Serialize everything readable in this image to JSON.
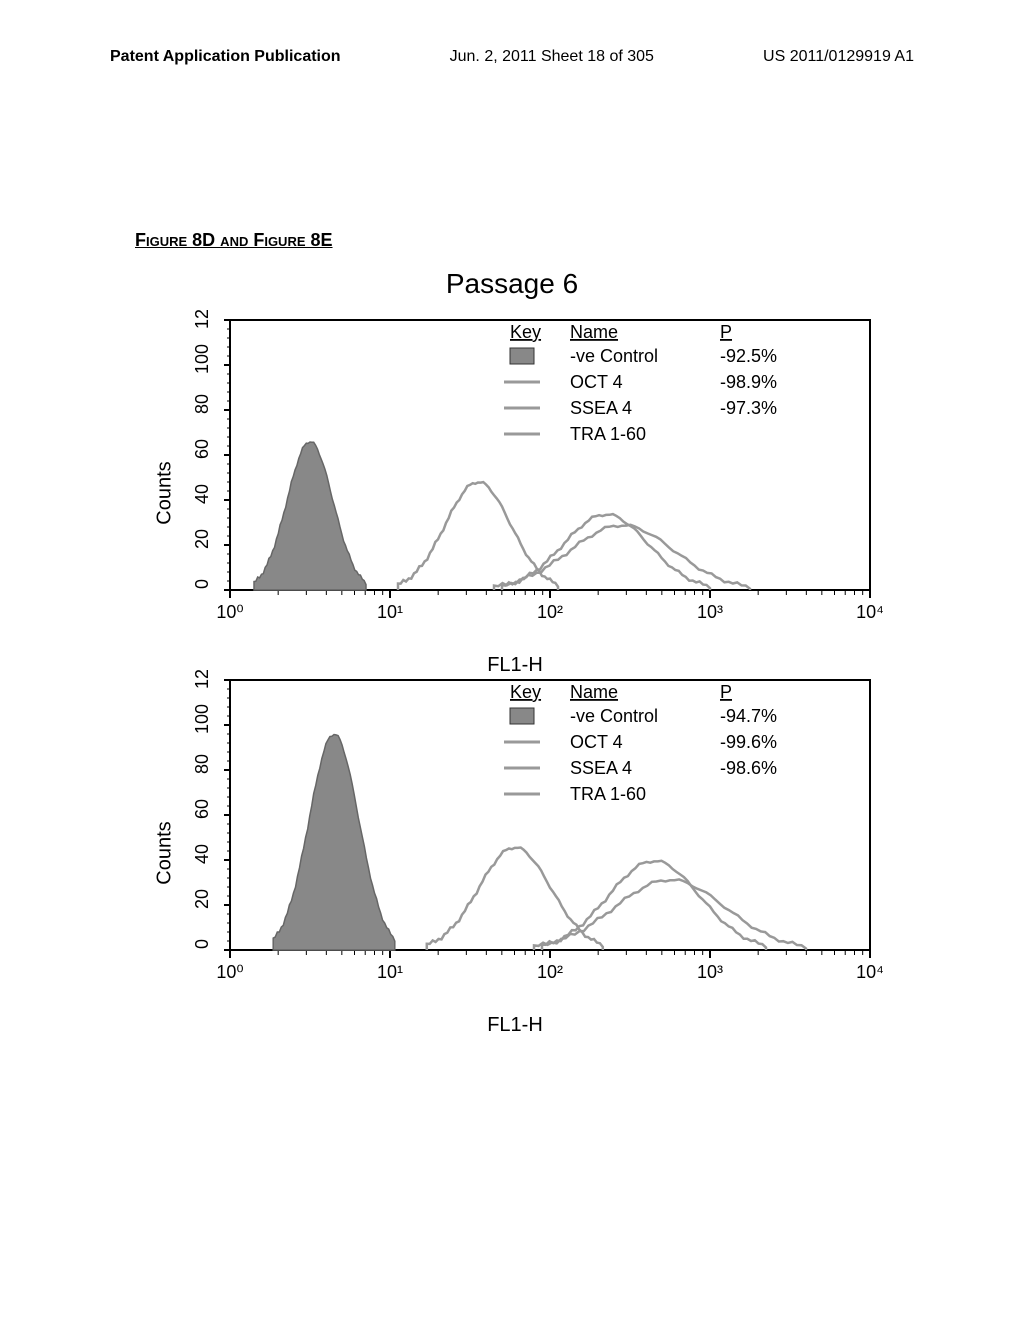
{
  "header": {
    "left": "Patent Application Publication",
    "center": "Jun. 2, 2011  Sheet 18 of 305",
    "right": "US 2011/0129919 A1"
  },
  "figure_label": "Figure 8D and Figure 8E",
  "chart_title": "Passage 6",
  "charts": [
    {
      "y_label": "Counts",
      "x_label": "FL1-H",
      "y_ticks": [
        0,
        20,
        40,
        60,
        80,
        100,
        120
      ],
      "x_ticks": [
        "10⁰",
        "10¹",
        "10²",
        "10³",
        "10⁴"
      ],
      "legend": {
        "headers": [
          "Key",
          "Name",
          "P"
        ],
        "rows": [
          {
            "swatch": "filled",
            "name": "-ve Control",
            "p": "-92.5%"
          },
          {
            "swatch": "line",
            "name": "OCT 4",
            "p": "-98.9%"
          },
          {
            "swatch": "line",
            "name": "SSEA 4",
            "p": "-97.3%"
          },
          {
            "swatch": "line",
            "name": "TRA 1-60",
            "p": ""
          }
        ]
      },
      "plot": {
        "bg": "#ffffff",
        "border": "#000000",
        "fill_color": "#888888",
        "line_color": "#999999",
        "series": {
          "control": {
            "center": 0.5,
            "width": 0.35,
            "height": 0.55
          },
          "oct4": {
            "center": 1.55,
            "width": 0.5,
            "height": 0.4
          },
          "ssea4": {
            "center": 2.35,
            "width": 0.65,
            "height": 0.28
          },
          "tra": {
            "center": 2.45,
            "width": 0.8,
            "height": 0.24
          }
        }
      }
    },
    {
      "y_label": "Counts",
      "x_label": "FL1-H",
      "y_ticks": [
        0,
        20,
        40,
        60,
        80,
        100,
        120
      ],
      "x_ticks": [
        "10⁰",
        "10¹",
        "10²",
        "10³",
        "10⁴"
      ],
      "legend": {
        "headers": [
          "Key",
          "Name",
          "P"
        ],
        "rows": [
          {
            "swatch": "filled",
            "name": "-ve Control",
            "p": "-94.7%"
          },
          {
            "swatch": "line",
            "name": "OCT 4",
            "p": "-99.6%"
          },
          {
            "swatch": "line",
            "name": "SSEA 4",
            "p": "-98.6%"
          },
          {
            "swatch": "line",
            "name": "TRA 1-60",
            "p": ""
          }
        ]
      },
      "plot": {
        "bg": "#ffffff",
        "border": "#000000",
        "fill_color": "#888888",
        "line_color": "#999999",
        "series": {
          "control": {
            "center": 0.65,
            "width": 0.38,
            "height": 0.8
          },
          "oct4": {
            "center": 1.78,
            "width": 0.55,
            "height": 0.38
          },
          "ssea4": {
            "center": 2.65,
            "width": 0.7,
            "height": 0.33
          },
          "tra": {
            "center": 2.75,
            "width": 0.85,
            "height": 0.26
          }
        }
      }
    }
  ]
}
